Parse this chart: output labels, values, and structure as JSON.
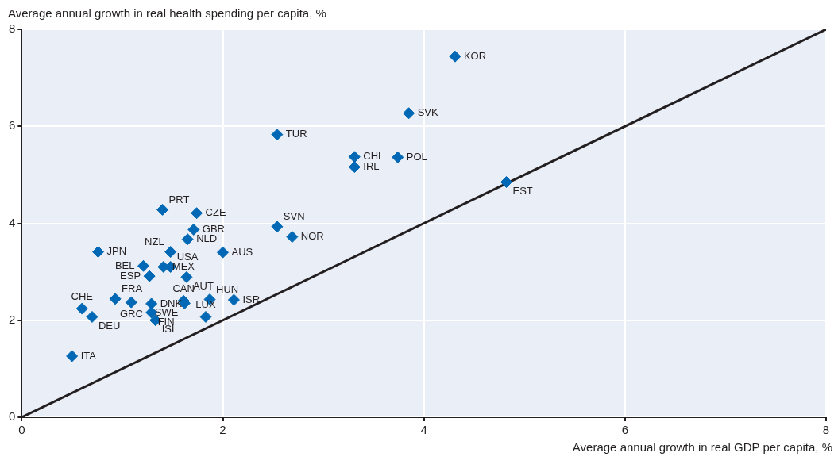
{
  "chart_data": {
    "type": "scatter",
    "xlabel": "Average annual growth in real GDP per capita, %",
    "ylabel": "Average annual growth in real health spending per capita, %",
    "xlim": [
      0,
      8
    ],
    "ylim": [
      0,
      8
    ],
    "xticks": [
      0,
      2,
      4,
      6,
      8
    ],
    "yticks": [
      0,
      2,
      4,
      6,
      8
    ],
    "grid": true,
    "legend": false,
    "marker": "diamond",
    "series": [
      {
        "type": "scatter",
        "color": "#0068b4",
        "x": [
          4.31,
          3.85,
          2.54,
          3.31,
          3.31,
          3.74,
          4.82,
          2.54,
          2.69,
          1.4,
          1.74,
          1.71,
          1.65,
          0.76,
          1.48,
          2.0,
          1.48,
          1.41,
          1.21,
          1.27,
          1.64,
          1.61,
          1.87,
          2.11,
          1.62,
          1.83,
          1.29,
          1.29,
          1.33,
          1.09,
          0.93,
          0.6,
          0.7,
          0.5
        ],
        "values": [
          7.44,
          6.27,
          5.83,
          5.37,
          5.16,
          5.36,
          4.85,
          3.93,
          3.72,
          4.28,
          4.21,
          3.87,
          3.67,
          3.41,
          3.41,
          3.4,
          3.1,
          3.1,
          3.12,
          2.91,
          2.89,
          2.4,
          2.43,
          2.42,
          2.35,
          2.07,
          2.34,
          2.16,
          2.0,
          2.37,
          2.44,
          2.24,
          2.07,
          1.26
        ],
        "value_labels": [
          "KOR",
          "SVK",
          "TUR",
          "CHL",
          "IRL",
          "POL",
          "EST",
          "SVN",
          "NOR",
          "PRT",
          "CZE",
          "GBR",
          "NLD",
          "JPN",
          "NZL",
          "AUS",
          "USA",
          "MEX",
          "BEL",
          "ESP",
          "AUT",
          "CAN",
          "HUN",
          "ISR",
          "SWE",
          "LUX",
          "DNK",
          "FIN",
          "ISL",
          "GRC",
          "FRA",
          "CHE",
          "DEU",
          "ITA"
        ]
      },
      {
        "type": "line",
        "color": "#231f20",
        "x": [
          0,
          8
        ],
        "values": [
          0,
          8
        ],
        "marker": "none"
      }
    ]
  }
}
